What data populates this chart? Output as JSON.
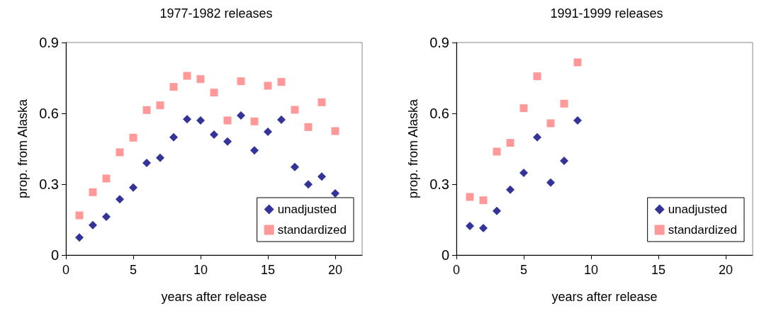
{
  "chart_data": [
    {
      "type": "scatter",
      "title": "1977-1982 releases",
      "xlabel": "years after release",
      "ylabel": "prop. from Alaska",
      "x": [
        1,
        2,
        3,
        4,
        5,
        6,
        7,
        8,
        9,
        10,
        11,
        12,
        13,
        14,
        15,
        16,
        17,
        18,
        19,
        20
      ],
      "series": [
        {
          "name": "unadjusted",
          "color": "#000080",
          "marker": "diamond",
          "values": [
            0.074,
            0.127,
            0.162,
            0.236,
            0.286,
            0.39,
            0.412,
            0.499,
            0.575,
            0.57,
            0.51,
            0.481,
            0.591,
            0.443,
            0.522,
            0.573,
            0.373,
            0.299,
            0.332,
            0.261
          ]
        },
        {
          "name": "standardized",
          "color": "#ff8080",
          "marker": "square",
          "values": [
            0.168,
            0.266,
            0.324,
            0.435,
            0.497,
            0.614,
            0.634,
            0.712,
            0.759,
            0.745,
            0.688,
            0.57,
            0.736,
            0.566,
            0.717,
            0.733,
            0.615,
            0.542,
            0.647,
            0.525
          ]
        }
      ],
      "xlim": [
        0,
        22
      ],
      "xticks": [
        0,
        5,
        10,
        15,
        20
      ],
      "ylim": [
        0,
        0.9
      ],
      "yticks": [
        0,
        0.3,
        0.6,
        0.9
      ],
      "grid": false,
      "legend": "bottom right"
    },
    {
      "type": "scatter",
      "title": "1991-1999 releases",
      "xlabel": "years after release",
      "ylabel": "prop. from Alaska",
      "x": [
        1,
        2,
        3,
        4,
        5,
        6,
        7,
        8,
        9
      ],
      "series": [
        {
          "name": "unadjusted",
          "color": "#000080",
          "marker": "diamond",
          "values": [
            0.123,
            0.114,
            0.187,
            0.277,
            0.348,
            0.499,
            0.307,
            0.399,
            0.57
          ]
        },
        {
          "name": "standardized",
          "color": "#ff8080",
          "marker": "square",
          "values": [
            0.246,
            0.232,
            0.438,
            0.475,
            0.622,
            0.757,
            0.558,
            0.641,
            0.816
          ]
        }
      ],
      "xlim": [
        0,
        22
      ],
      "xticks": [
        0,
        5,
        10,
        15,
        20
      ],
      "ylim": [
        0,
        0.9
      ],
      "yticks": [
        0,
        0.3,
        0.6,
        0.9
      ],
      "grid": false,
      "legend": "bottom right"
    }
  ]
}
